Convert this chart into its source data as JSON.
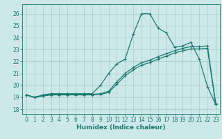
{
  "xlabel": "Humidex (Indice chaleur)",
  "background_color": "#cce8e8",
  "line_color": "#1a7a6e",
  "grid_color": "#aacccc",
  "xlim": [
    -0.5,
    23.5
  ],
  "ylim": [
    17.6,
    26.8
  ],
  "yticks": [
    18,
    19,
    20,
    21,
    22,
    23,
    24,
    25,
    26
  ],
  "xticks": [
    0,
    1,
    2,
    3,
    4,
    5,
    6,
    7,
    8,
    9,
    10,
    11,
    12,
    13,
    14,
    15,
    16,
    17,
    18,
    19,
    20,
    21,
    22,
    23
  ],
  "series1_y": [
    19.2,
    19.0,
    19.2,
    19.3,
    19.3,
    19.3,
    19.3,
    19.3,
    19.3,
    20.0,
    21.0,
    21.8,
    22.2,
    24.3,
    26.0,
    26.0,
    24.8,
    24.4,
    23.2,
    23.3,
    23.6,
    22.2,
    19.9,
    18.4
  ],
  "series2_y": [
    19.2,
    19.0,
    19.15,
    19.25,
    19.25,
    19.25,
    19.25,
    19.25,
    19.25,
    19.3,
    19.5,
    20.3,
    21.0,
    21.5,
    21.9,
    22.1,
    22.4,
    22.65,
    22.9,
    23.1,
    23.25,
    23.25,
    23.3,
    18.5
  ],
  "series3_y": [
    19.2,
    19.0,
    19.1,
    19.2,
    19.2,
    19.2,
    19.2,
    19.2,
    19.2,
    19.25,
    19.4,
    20.1,
    20.8,
    21.3,
    21.7,
    21.9,
    22.2,
    22.45,
    22.7,
    22.9,
    23.05,
    23.05,
    23.1,
    18.4
  ],
  "marker_size": 3.5,
  "linewidth": 0.9,
  "tick_fontsize": 5.5,
  "label_fontsize": 6.5
}
